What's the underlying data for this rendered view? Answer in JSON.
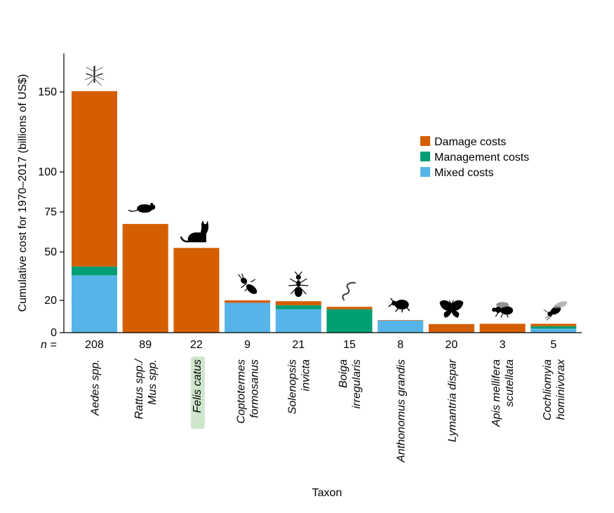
{
  "chart_data": {
    "type": "bar",
    "stacked": true,
    "xlabel": "Taxon",
    "ylabel": "Cumulative cost for 1970–2017 (billions of US$)",
    "ylim": [
      0,
      150
    ],
    "yticks": [
      0,
      20,
      50,
      75,
      100,
      150
    ],
    "grid": false,
    "legend_position": "top-right",
    "n_prefix": "n =",
    "categories": [
      {
        "line1": "Aedes spp.",
        "line2": "",
        "n": "208",
        "icon": "mosquito-icon",
        "highlight": false
      },
      {
        "line1": "Rattus spp./",
        "line2": "Mus spp.",
        "n": "89",
        "icon": "rat-icon",
        "highlight": false
      },
      {
        "line1": "Felis catus",
        "line2": "",
        "n": "22",
        "icon": "cat-icon",
        "highlight": true
      },
      {
        "line1": "Coptotermes",
        "line2": "formosanus",
        "n": "9",
        "icon": "termite-icon",
        "highlight": false
      },
      {
        "line1": "Solenopsis",
        "line2": "invicta",
        "n": "21",
        "icon": "ant-icon",
        "highlight": false
      },
      {
        "line1": "Boiga",
        "line2": "irregularis",
        "n": "15",
        "icon": "snake-icon",
        "highlight": false
      },
      {
        "line1": "Anthonomus grandis",
        "line2": "",
        "n": "8",
        "icon": "weevil-icon",
        "highlight": false
      },
      {
        "line1": "Lymantria dispar",
        "line2": "",
        "n": "20",
        "icon": "moth-icon",
        "highlight": false
      },
      {
        "line1": "Apis mellifera",
        "line2": "scutellata",
        "n": "3",
        "icon": "bee-icon",
        "highlight": false
      },
      {
        "line1": "Cochliomyia",
        "line2": "hominivorax",
        "n": "5",
        "icon": "fly-icon",
        "highlight": false
      }
    ],
    "series": [
      {
        "name": "Mixed costs",
        "color": "#56b4e9",
        "values": [
          35.5,
          0,
          0,
          18.5,
          14.5,
          0,
          7.5,
          0,
          0,
          2.5
        ]
      },
      {
        "name": "Management costs",
        "color": "#009e73",
        "values": [
          5.5,
          0,
          0,
          0,
          2.5,
          14.5,
          0,
          0.3,
          0.2,
          1.5
        ]
      },
      {
        "name": "Damage costs",
        "color": "#d55e00",
        "values": [
          109.5,
          67.5,
          52.5,
          1.5,
          2.5,
          1.5,
          0.3,
          5.0,
          5.3,
          1.5
        ]
      }
    ],
    "legend": [
      "Damage costs",
      "Management costs",
      "Mixed costs"
    ]
  }
}
